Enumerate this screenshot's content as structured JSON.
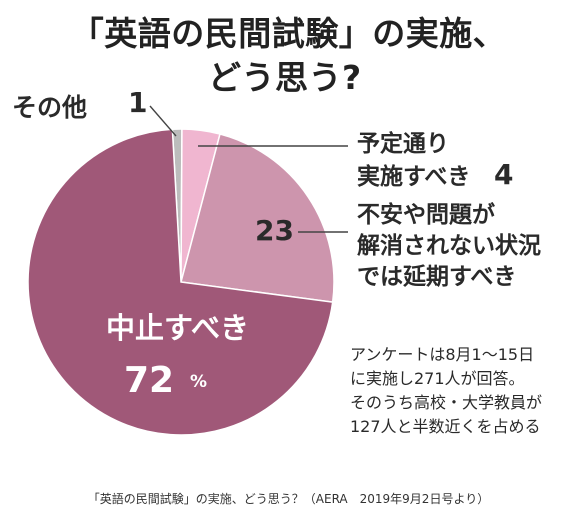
{
  "title_line1": "「英語の民間試験」の実施、",
  "title_line2": "どう思う?",
  "chart_data": {
    "type": "pie",
    "title": "「英語の民間試験」の実施、どう思う?",
    "slices": [
      {
        "label": "その他",
        "value": 1,
        "display": "1",
        "color": "#bcbcbc"
      },
      {
        "label": "予定通り\n実施すべき",
        "value": 4,
        "display": "4",
        "color": "#f0b6d0"
      },
      {
        "label": "不安や問題が\n解消されない状況\nでは延期すべき",
        "value": 23,
        "display": "23",
        "color": "#cd95ad"
      },
      {
        "label": "中止すべき",
        "value": 72,
        "display": "72",
        "unit": "%",
        "color": "#a05878"
      }
    ]
  },
  "note": "アンケートは8月1〜15日\nに実施し271人が回答。\nそのうち高校・大学教員が\n127人と半数近くを占める",
  "caption": "「英語の民間試験」の実施、どう思う？（AERA　2019年9月2日号より）"
}
